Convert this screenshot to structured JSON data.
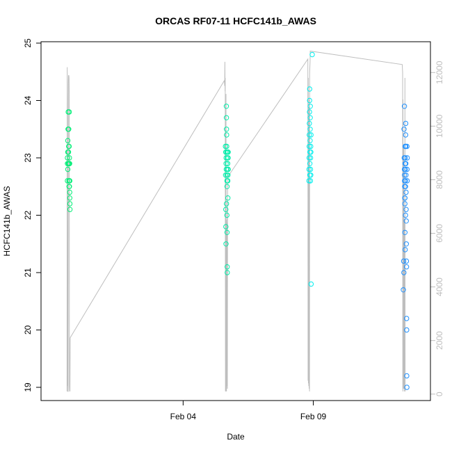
{
  "chart_data": {
    "type": "scatter",
    "title": "ORCAS RF07-11 HCFC141b_AWAS",
    "xlabel": "Date",
    "ylabel": "HCFC141b_AWAS",
    "x_ticks": [
      {
        "date": "2016-02-04",
        "label": "Feb 04"
      },
      {
        "date": "2016-02-09",
        "label": "Feb 09"
      }
    ],
    "xlim": [
      "2016-01-29T13:00",
      "2016-02-13T12:00"
    ],
    "y_ticks": [
      19,
      20,
      21,
      22,
      23,
      24,
      25
    ],
    "ylim": [
      19,
      25
    ],
    "y2_ticks": [
      0,
      2000,
      4000,
      6000,
      8000,
      10000,
      12000
    ],
    "y2lim": [
      -240,
      13150
    ],
    "colors": {
      "rf07": "#00ee76",
      "rf08": "#00eeaa",
      "rf09": "#00eeee",
      "rf10": "#1e90ff",
      "altitude_line": "#bebebe",
      "axis": "#000000",
      "y2_axis": "#bebebe"
    },
    "series": [
      {
        "color_key": "rf07",
        "points": [
          [
            "2016-01-30T13:20",
            22.6
          ],
          [
            "2016-01-30T13:20",
            22.9
          ],
          [
            "2016-01-30T13:20",
            23.0
          ],
          [
            "2016-01-30T13:40",
            22.8
          ],
          [
            "2016-01-30T13:40",
            23.1
          ],
          [
            "2016-01-30T13:40",
            23.3
          ],
          [
            "2016-01-30T13:55",
            23.5
          ],
          [
            "2016-01-30T14:05",
            23.8
          ],
          [
            "2016-01-30T14:10",
            22.9
          ],
          [
            "2016-01-30T14:20",
            23.1
          ],
          [
            "2016-01-30T14:30",
            23.2
          ],
          [
            "2016-01-30T14:30",
            23.5
          ],
          [
            "2016-01-30T14:45",
            22.6
          ],
          [
            "2016-01-30T14:45",
            22.9
          ],
          [
            "2016-01-30T14:55",
            23.2
          ],
          [
            "2016-01-30T15:00",
            23.8
          ],
          [
            "2016-01-30T15:10",
            22.5
          ],
          [
            "2016-01-30T15:15",
            22.9
          ],
          [
            "2016-01-30T15:20",
            22.6
          ],
          [
            "2016-01-30T15:25",
            22.4
          ],
          [
            "2016-01-30T15:30",
            22.3
          ],
          [
            "2016-01-30T15:35",
            22.2
          ],
          [
            "2016-01-30T15:40",
            22.1
          ],
          [
            "2016-01-30T15:20",
            22.9
          ],
          [
            "2016-01-30T15:30",
            22.6
          ],
          [
            "2016-01-30T15:10",
            23.0
          ],
          [
            "2016-01-30T14:50",
            22.5
          ]
        ]
      },
      {
        "color_key": "rf08",
        "points": [
          [
            "2016-02-05T15:00",
            23.2
          ],
          [
            "2016-02-05T15:10",
            22.7
          ],
          [
            "2016-02-05T15:15",
            23.1
          ],
          [
            "2016-02-05T15:20",
            22.1
          ],
          [
            "2016-02-05T15:25",
            21.8
          ],
          [
            "2016-02-05T15:30",
            21.5
          ],
          [
            "2016-02-05T15:35",
            22.9
          ],
          [
            "2016-02-05T15:40",
            23.0
          ],
          [
            "2016-02-05T15:45",
            22.8
          ],
          [
            "2016-02-05T15:50",
            23.9
          ],
          [
            "2016-02-05T15:55",
            23.7
          ],
          [
            "2016-02-05T16:00",
            23.5
          ],
          [
            "2016-02-05T16:05",
            23.4
          ],
          [
            "2016-02-05T16:10",
            23.2
          ],
          [
            "2016-02-05T16:15",
            23.1
          ],
          [
            "2016-02-05T16:20",
            22.7
          ],
          [
            "2016-02-05T16:25",
            22.6
          ],
          [
            "2016-02-05T16:30",
            22.5
          ],
          [
            "2016-02-05T16:35",
            21.1
          ],
          [
            "2016-02-05T16:40",
            21.0
          ],
          [
            "2016-02-05T16:45",
            22.8
          ],
          [
            "2016-02-05T16:50",
            23.0
          ],
          [
            "2016-02-05T16:55",
            22.9
          ],
          [
            "2016-02-05T17:00",
            23.1
          ],
          [
            "2016-02-05T17:05",
            22.9
          ],
          [
            "2016-02-05T17:10",
            22.6
          ],
          [
            "2016-02-05T17:15",
            22.3
          ],
          [
            "2016-02-05T17:20",
            22.7
          ],
          [
            "2016-02-05T17:25",
            23.0
          ],
          [
            "2016-02-05T17:30",
            23.1
          ],
          [
            "2016-02-05T17:35",
            22.8
          ],
          [
            "2016-02-05T16:30",
            21.7
          ],
          [
            "2016-02-05T16:20",
            22.0
          ],
          [
            "2016-02-05T16:00",
            22.2
          ]
        ]
      },
      {
        "color_key": "rf09",
        "points": [
          [
            "2016-02-08T20:00",
            22.6
          ],
          [
            "2016-02-08T20:05",
            22.8
          ],
          [
            "2016-02-08T20:10",
            23.0
          ],
          [
            "2016-02-08T20:15",
            23.2
          ],
          [
            "2016-02-08T20:20",
            23.4
          ],
          [
            "2016-02-08T20:25",
            23.6
          ],
          [
            "2016-02-08T20:30",
            23.8
          ],
          [
            "2016-02-08T20:35",
            24.0
          ],
          [
            "2016-02-08T20:40",
            24.2
          ],
          [
            "2016-02-08T20:45",
            22.7
          ],
          [
            "2016-02-08T20:50",
            22.9
          ],
          [
            "2016-02-08T20:55",
            23.1
          ],
          [
            "2016-02-08T21:00",
            23.3
          ],
          [
            "2016-02-08T21:05",
            23.5
          ],
          [
            "2016-02-08T21:10",
            23.7
          ],
          [
            "2016-02-08T21:15",
            23.9
          ],
          [
            "2016-02-08T21:20",
            22.6
          ],
          [
            "2016-02-08T21:25",
            22.8
          ],
          [
            "2016-02-08T21:30",
            23.0
          ],
          [
            "2016-02-08T21:35",
            23.2
          ],
          [
            "2016-02-08T21:40",
            22.7
          ],
          [
            "2016-02-08T21:45",
            23.1
          ],
          [
            "2016-02-08T21:50",
            23.4
          ],
          [
            "2016-02-08T22:00",
            20.8
          ],
          [
            "2016-02-08T23:00",
            24.8
          ]
        ]
      },
      {
        "color_key": "rf10",
        "points": [
          [
            "2016-02-12T11:00",
            20.7
          ],
          [
            "2016-02-12T11:20",
            21.2
          ],
          [
            "2016-02-12T11:30",
            21.0
          ],
          [
            "2016-02-12T11:40",
            23.5
          ],
          [
            "2016-02-12T11:50",
            23.0
          ],
          [
            "2016-02-12T12:00",
            22.8
          ],
          [
            "2016-02-12T12:05",
            22.7
          ],
          [
            "2016-02-12T12:10",
            22.6
          ],
          [
            "2016-02-12T12:15",
            22.5
          ],
          [
            "2016-02-12T12:20",
            22.3
          ],
          [
            "2016-02-12T12:25",
            22.2
          ],
          [
            "2016-02-12T12:30",
            21.7
          ],
          [
            "2016-02-12T12:35",
            22.9
          ],
          [
            "2016-02-12T12:40",
            23.2
          ],
          [
            "2016-02-12T12:45",
            23.0
          ],
          [
            "2016-02-12T12:50",
            22.8
          ],
          [
            "2016-02-12T12:55",
            22.6
          ],
          [
            "2016-02-12T13:00",
            22.5
          ],
          [
            "2016-02-12T13:05",
            23.4
          ],
          [
            "2016-02-12T13:10",
            23.6
          ],
          [
            "2016-02-12T13:15",
            23.2
          ],
          [
            "2016-02-12T13:20",
            22.9
          ],
          [
            "2016-02-12T13:25",
            22.7
          ],
          [
            "2016-02-12T13:30",
            22.4
          ],
          [
            "2016-02-12T13:35",
            22.1
          ],
          [
            "2016-02-12T13:40",
            21.9
          ],
          [
            "2016-02-12T13:45",
            21.5
          ],
          [
            "2016-02-12T13:50",
            21.2
          ],
          [
            "2016-02-12T13:55",
            21.1
          ],
          [
            "2016-02-12T14:00",
            20.2
          ],
          [
            "2016-02-12T14:05",
            20.0
          ],
          [
            "2016-02-12T14:10",
            19.2
          ],
          [
            "2016-02-12T14:15",
            19.0
          ],
          [
            "2016-02-12T14:20",
            23.2
          ],
          [
            "2016-02-12T14:25",
            22.8
          ],
          [
            "2016-02-12T14:30",
            22.6
          ],
          [
            "2016-02-12T14:35",
            23.0
          ],
          [
            "2016-02-12T12:00",
            23.9
          ],
          [
            "2016-02-12T12:30",
            22.3
          ],
          [
            "2016-02-12T13:00",
            22.0
          ],
          [
            "2016-02-12T12:40",
            21.4
          ]
        ]
      }
    ],
    "altitude_line": [
      [
        "2016-01-30T13:00",
        100
      ],
      [
        "2016-01-30T13:10",
        12200
      ],
      [
        "2016-01-30T13:20",
        11000
      ],
      [
        "2016-01-30T13:30",
        300
      ],
      [
        "2016-01-30T13:40",
        1500
      ],
      [
        "2016-01-30T13:50",
        100
      ],
      [
        "2016-01-30T14:00",
        100
      ],
      [
        "2016-01-30T14:10",
        11600
      ],
      [
        "2016-01-30T14:20",
        11900
      ],
      [
        "2016-01-30T14:30",
        11700
      ],
      [
        "2016-01-30T14:40",
        11900
      ],
      [
        "2016-01-30T14:50",
        11800
      ],
      [
        "2016-01-30T15:00",
        11000
      ],
      [
        "2016-01-30T15:10",
        300
      ],
      [
        "2016-01-30T15:20",
        100
      ],
      [
        "2016-01-30T15:30",
        1500
      ],
      [
        "2016-01-30T15:40",
        100
      ],
      [
        "2016-01-30T15:50",
        2100
      ],
      [
        "2016-02-05T14:00",
        11700
      ],
      [
        "2016-02-05T14:20",
        11500
      ],
      [
        "2016-02-05T14:30",
        12400
      ],
      [
        "2016-02-05T14:40",
        11300
      ],
      [
        "2016-02-05T14:50",
        11800
      ],
      [
        "2016-02-05T15:00",
        100
      ],
      [
        "2016-02-05T15:10",
        1500
      ],
      [
        "2016-02-05T15:20",
        100
      ],
      [
        "2016-02-05T15:30",
        11200
      ],
      [
        "2016-02-05T15:40",
        100
      ],
      [
        "2016-02-05T15:50",
        6500
      ],
      [
        "2016-02-05T16:00",
        100
      ],
      [
        "2016-02-05T16:10",
        1300
      ],
      [
        "2016-02-05T16:20",
        6400
      ],
      [
        "2016-02-05T16:30",
        300
      ],
      [
        "2016-02-05T16:40",
        7200
      ],
      [
        "2016-02-05T16:50",
        200
      ],
      [
        "2016-02-05T17:00",
        8100
      ],
      [
        "2016-02-08T19:00",
        12500
      ],
      [
        "2016-02-08T19:10",
        500
      ],
      [
        "2016-02-08T19:20",
        11800
      ],
      [
        "2016-02-08T19:30",
        400
      ],
      [
        "2016-02-08T19:40",
        10700
      ],
      [
        "2016-02-08T19:50",
        300
      ],
      [
        "2016-02-08T20:00",
        9800
      ],
      [
        "2016-02-08T20:10",
        200
      ],
      [
        "2016-02-08T20:20",
        11000
      ],
      [
        "2016-02-08T20:30",
        100
      ],
      [
        "2016-02-08T20:40",
        12000
      ],
      [
        "2016-02-08T20:50",
        12200
      ],
      [
        "2016-02-08T21:00",
        12400
      ],
      [
        "2016-02-08T21:10",
        12800
      ],
      [
        "2016-02-12T10:00",
        12300
      ],
      [
        "2016-02-12T10:20",
        12000
      ],
      [
        "2016-02-12T10:30",
        100
      ],
      [
        "2016-02-12T10:40",
        11000
      ],
      [
        "2016-02-12T10:50",
        400
      ],
      [
        "2016-02-12T11:00",
        1200
      ],
      [
        "2016-02-12T11:10",
        200
      ],
      [
        "2016-02-12T11:20",
        9300
      ],
      [
        "2016-02-12T11:30",
        200
      ],
      [
        "2016-02-12T11:40",
        1200
      ],
      [
        "2016-02-12T11:50",
        100
      ],
      [
        "2016-02-12T12:00",
        6500
      ],
      [
        "2016-02-12T12:10",
        200
      ],
      [
        "2016-02-12T12:20",
        1000
      ],
      [
        "2016-02-12T12:30",
        11800
      ],
      [
        "2016-02-12T12:40",
        100
      ],
      [
        "2016-02-12T12:50",
        200
      ]
    ]
  }
}
